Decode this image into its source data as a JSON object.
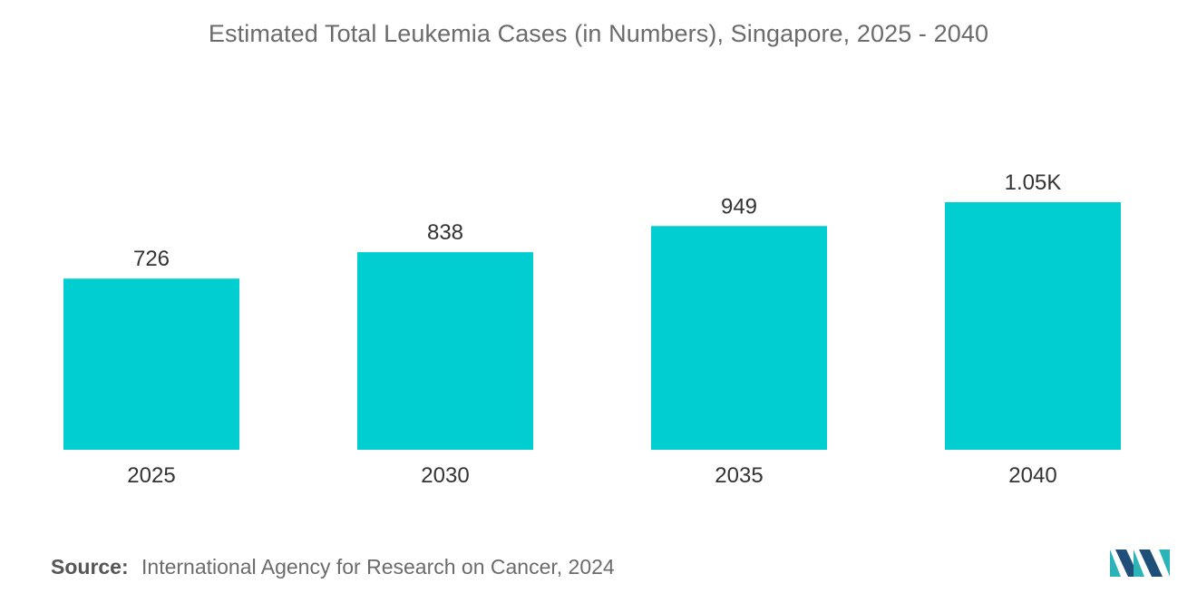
{
  "chart_data": {
    "type": "bar",
    "title": "Estimated Total Leukemia Cases (in Numbers), Singapore, 2025 - 2040",
    "categories": [
      "2025",
      "2030",
      "2035",
      "2040"
    ],
    "values": [
      726,
      838,
      949,
      1050
    ],
    "value_labels": [
      "726",
      "838",
      "949",
      "1.05K"
    ],
    "xlabel": "",
    "ylabel": "",
    "ylim": [
      0,
      1100
    ],
    "grid": false,
    "legend": "none"
  },
  "colors": {
    "bar": "#00CED1",
    "text": "#333333",
    "title": "#6b6b6b",
    "logo_dark": "#1f4e79",
    "logo_light": "#2bb3b8"
  },
  "source": {
    "label": "Source:",
    "text": "International Agency for Research on Cancer, 2024"
  },
  "logo": {
    "icon": "mordor-intelligence-logo-icon"
  }
}
